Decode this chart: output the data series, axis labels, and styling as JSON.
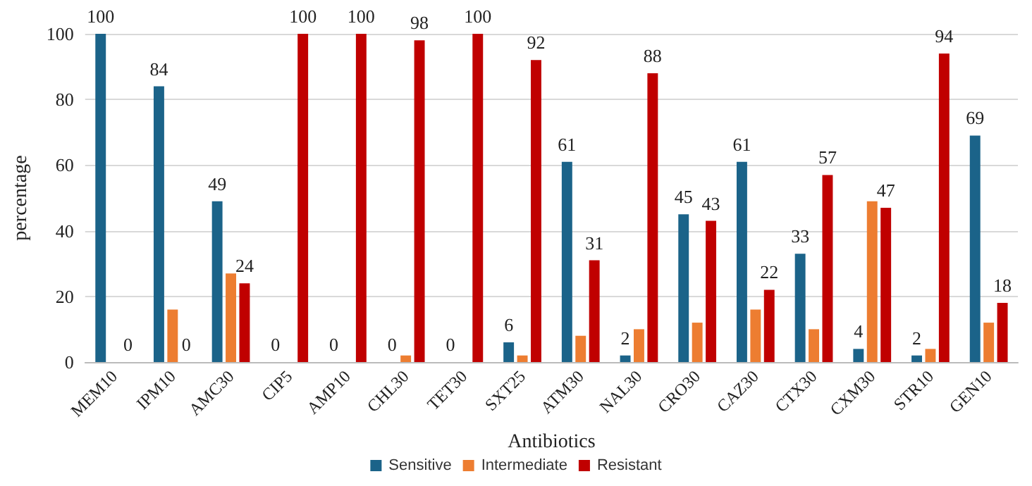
{
  "chart_data": {
    "type": "bar",
    "xlabel": "Antibiotics",
    "ylabel": "percentage",
    "categories": [
      "MEM10",
      "IPM10",
      "AMC30",
      "CIP5",
      "AMP10",
      "CHL30",
      "TET30",
      "SXT25",
      "ATM30",
      "NAL30",
      "CRO30",
      "CAZ30",
      "CTX30",
      "CXM30",
      "STR10",
      "GEN10"
    ],
    "series": [
      {
        "name": "Sensitive",
        "color": "#1b6389",
        "values": [
          100,
          84,
          49,
          0,
          0,
          0,
          0,
          6,
          61,
          2,
          45,
          61,
          33,
          4,
          2,
          69
        ],
        "value_labels": [
          "100",
          "84",
          "49",
          "0",
          "0",
          "0",
          "0",
          "6",
          "61",
          "2",
          "45",
          "61",
          "33",
          "4",
          "2",
          "69"
        ]
      },
      {
        "name": "Intermediate",
        "color": "#ed7d31",
        "values": [
          0,
          16,
          27,
          0,
          0,
          2,
          0,
          2,
          8,
          10,
          12,
          16,
          10,
          49,
          4,
          12
        ]
      },
      {
        "name": "Resistant",
        "color": "#c00000",
        "values": [
          0,
          0,
          24,
          100,
          100,
          98,
          100,
          92,
          31,
          88,
          43,
          22,
          57,
          47,
          94,
          18
        ],
        "value_labels": [
          "0",
          "0",
          "24",
          "100",
          "100",
          "98",
          "100",
          "92",
          "31",
          "88",
          "43",
          "22",
          "57",
          "47",
          "94",
          "18"
        ]
      }
    ],
    "ylim": [
      0,
      100
    ],
    "yticks": [
      0,
      20,
      40,
      60,
      80,
      100
    ],
    "grid": "y",
    "legend": "bottom"
  }
}
